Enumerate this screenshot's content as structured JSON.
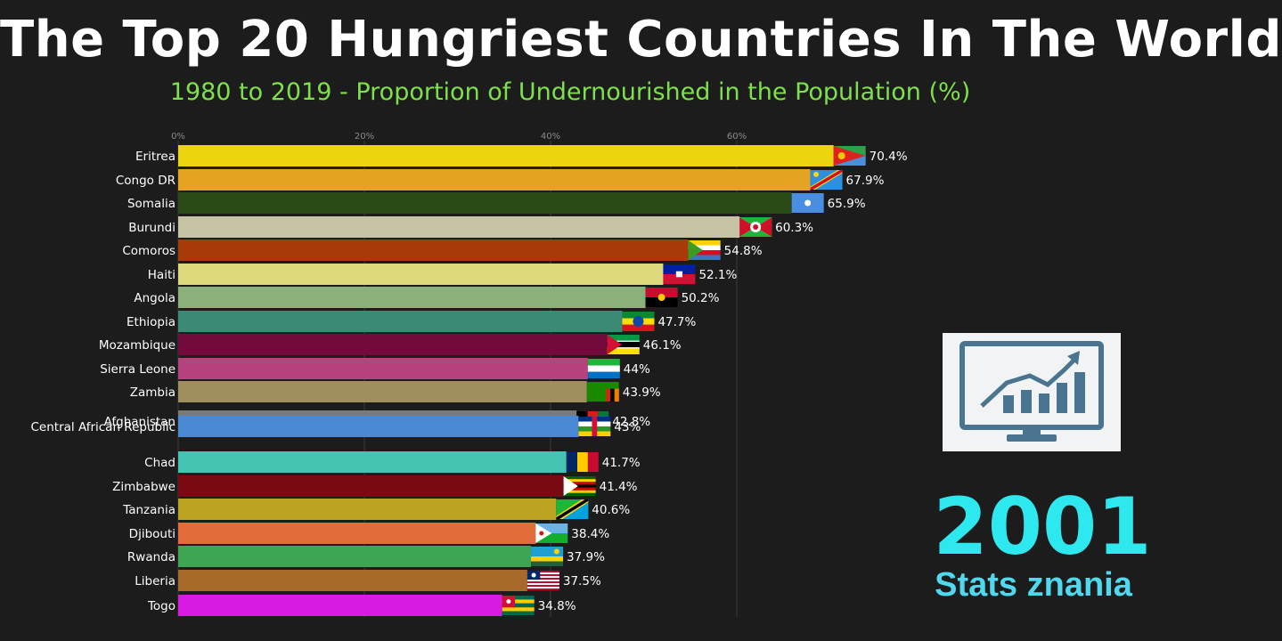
{
  "header": {
    "title": "The Top 20 Hungriest Countries In The World",
    "subtitle": "1980 to 2019 - Proportion of Undernourished in the Population (%)"
  },
  "year": "2001",
  "brand": "Stats znania",
  "logo_icon": "chart-monitor-icon",
  "chart_data": {
    "type": "bar",
    "orientation": "horizontal",
    "xlim": [
      0,
      76
    ],
    "x_ticks": [
      "0%",
      "20%",
      "40%",
      "60%"
    ],
    "grid": true,
    "categories": [
      "Eritrea",
      "Congo DR",
      "Somalia",
      "Burundi",
      "Comoros",
      "Haiti",
      "Angola",
      "Ethiopia",
      "Mozambique",
      "Sierra Leone",
      "Zambia",
      "Afghanistan",
      "Central African Republic",
      "Chad",
      "Zimbabwe",
      "Tanzania",
      "Djibouti",
      "Rwanda",
      "Liberia",
      "Togo"
    ],
    "values": [
      70.4,
      67.9,
      65.9,
      60.3,
      54.8,
      52.1,
      50.2,
      47.7,
      46.1,
      44,
      43.9,
      42.8,
      43,
      41.7,
      41.4,
      40.6,
      38.4,
      37.9,
      37.5,
      34.8
    ],
    "value_labels": [
      "70.4%",
      "67.9%",
      "65.9%",
      "60.3%",
      "54.8%",
      "52.1%",
      "50.2%",
      "47.7%",
      "46.1%",
      "44%",
      "43.9%",
      "42.8%",
      "43%",
      "41.7%",
      "41.4%",
      "40.6%",
      "38.4%",
      "37.9%",
      "37.5%",
      "34.8%"
    ],
    "colors": [
      "#ecd40f",
      "#e4a321",
      "#2a4a17",
      "#c5c3a3",
      "#a83a0a",
      "#dcda7a",
      "#8cb07a",
      "#3a8a76",
      "#720a3c",
      "#b6427e",
      "#9f8f5c",
      "#7a7a7c",
      "#4a8ad4",
      "#45c4b4",
      "#7a0a12",
      "#bca422",
      "#e26c3a",
      "#3ea652",
      "#a86a2a",
      "#d81ae2"
    ],
    "flags": [
      "eritrea-flag",
      "congo-dr-flag",
      "somalia-flag",
      "burundi-flag",
      "comoros-flag",
      "haiti-flag",
      "angola-flag",
      "ethiopia-flag",
      "mozambique-flag",
      "sierra-leone-flag",
      "zambia-flag",
      "afghanistan-flag",
      "central-african-republic-flag",
      "chad-flag",
      "zimbabwe-flag",
      "tanzania-flag",
      "djibouti-flag",
      "rwanda-flag",
      "liberia-flag",
      "togo-flag"
    ]
  }
}
